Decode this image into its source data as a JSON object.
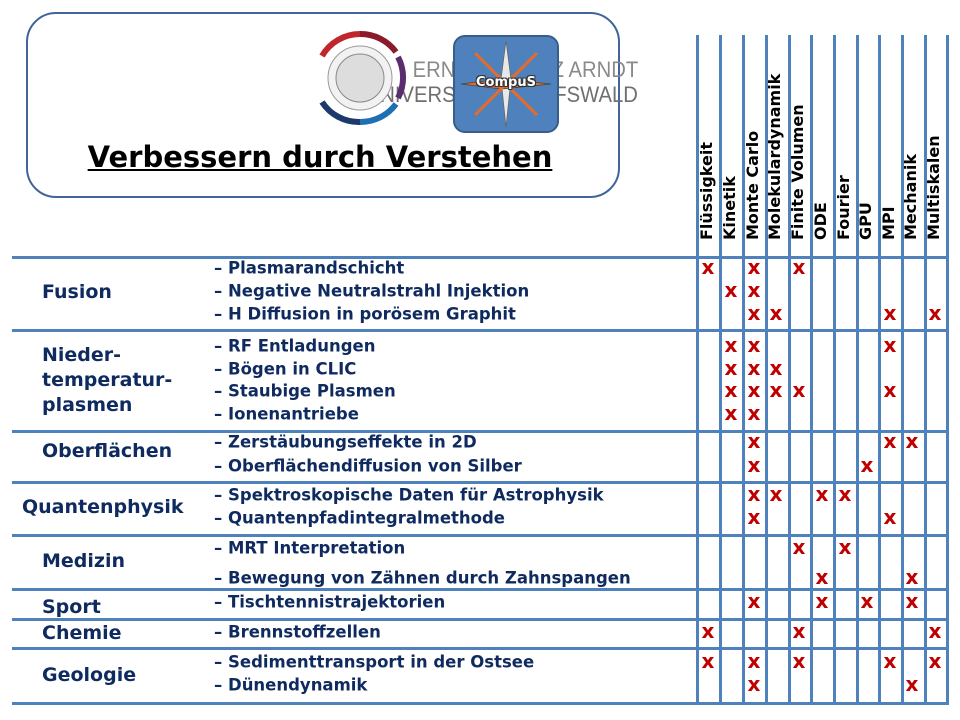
{
  "header": {
    "university_line1": "ERNST MORITZ ARNDT",
    "university_line2": "UNIVERSITÄT GREIFSWALD",
    "compus_label": "CompuS",
    "slogan": "Verbessern durch Verstehen"
  },
  "columns": [
    "Flüssigkeit",
    "Kinetik",
    "Monte Carlo",
    "Molekulardynamik",
    "Finite Volumen",
    "ODE",
    "Fourier",
    "GPU",
    "MPI",
    "Mechanik",
    "Multiskalen"
  ],
  "mark_symbol": "x",
  "groups": [
    {
      "label": [
        "Fusion"
      ],
      "items": [
        {
          "label": "– Plasmarandschicht",
          "marks": [
            0,
            2,
            4
          ]
        },
        {
          "label": "– Negative Neutralstrahl Injektion",
          "marks": [
            1,
            2
          ]
        },
        {
          "label": "– H Diffusion in porösem Graphit",
          "marks": [
            2,
            3,
            8,
            10
          ]
        }
      ]
    },
    {
      "label": [
        "Nieder-",
        "temperatur-",
        "plasmen"
      ],
      "items": [
        {
          "label": "– RF Entladungen",
          "marks": [
            1,
            2,
            8
          ]
        },
        {
          "label": "– Bögen in CLIC",
          "marks": [
            1,
            2,
            3
          ]
        },
        {
          "label": "– Staubige Plasmen",
          "marks": [
            1,
            2,
            3,
            4,
            8
          ]
        },
        {
          "label": "– Ionenantriebe",
          "marks": [
            1,
            2
          ]
        }
      ]
    },
    {
      "label": [
        "Oberflächen"
      ],
      "items": [
        {
          "label": "– Zerstäubungseffekte in 2D",
          "marks": [
            2,
            8,
            9
          ]
        },
        {
          "label": "– Oberflächendiffusion von Silber",
          "marks": [
            2,
            7
          ]
        }
      ]
    },
    {
      "label": [
        "Quantenphysik"
      ],
      "items": [
        {
          "label": "– Spektroskopische Daten für Astrophysik",
          "marks": [
            2,
            3,
            5,
            6
          ]
        },
        {
          "label": "– Quantenpfadintegralmethode",
          "marks": [
            2,
            8
          ]
        }
      ]
    },
    {
      "label": [
        "Medizin"
      ],
      "items": [
        {
          "label": "– MRT Interpretation",
          "marks": [
            4,
            6
          ]
        },
        {
          "label": "– Bewegung von Zähnen durch Zahnspangen",
          "marks": [
            5,
            9
          ]
        }
      ]
    },
    {
      "label": [
        "Sport"
      ],
      "items": [
        {
          "label": "– Tischtennistrajektorien",
          "marks": [
            2,
            5,
            7,
            9
          ]
        }
      ]
    },
    {
      "label": [
        "Chemie"
      ],
      "items": [
        {
          "label": "– Brennstoffzellen",
          "marks": [
            0,
            4,
            10
          ]
        }
      ]
    },
    {
      "label": [
        "Geologie"
      ],
      "items": [
        {
          "label": "– Sedimenttransport in der Ostsee",
          "marks": [
            0,
            2,
            4,
            8,
            10
          ]
        },
        {
          "label": "– Dünendynamik",
          "marks": [
            2,
            9
          ]
        }
      ]
    }
  ]
}
